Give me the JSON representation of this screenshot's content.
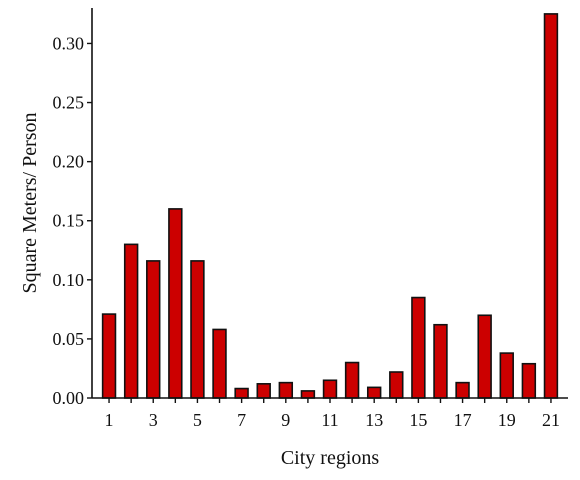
{
  "chart_data": {
    "type": "bar",
    "title": "",
    "xlabel": "City regions",
    "ylabel": "Square Meters/ Person",
    "categories": [
      "1",
      "2",
      "3",
      "4",
      "5",
      "6",
      "7",
      "8",
      "9",
      "10",
      "11",
      "12",
      "13",
      "14",
      "15",
      "16",
      "17",
      "18",
      "19",
      "20",
      "21"
    ],
    "x_tick_labels": [
      "1",
      "3",
      "5",
      "7",
      "9",
      "11",
      "13",
      "15",
      "17",
      "19",
      "21"
    ],
    "values": [
      0.071,
      0.13,
      0.116,
      0.16,
      0.116,
      0.058,
      0.008,
      0.012,
      0.013,
      0.006,
      0.015,
      0.03,
      0.009,
      0.022,
      0.085,
      0.062,
      0.013,
      0.07,
      0.038,
      0.029,
      0.325
    ],
    "ylim": [
      0,
      0.33
    ],
    "y_ticks": [
      "0.00",
      "0.05",
      "0.10",
      "0.15",
      "0.20",
      "0.25",
      "0.30"
    ],
    "grid": false,
    "bar_color": "#cc0000",
    "bar_edge_color": "#111111"
  }
}
